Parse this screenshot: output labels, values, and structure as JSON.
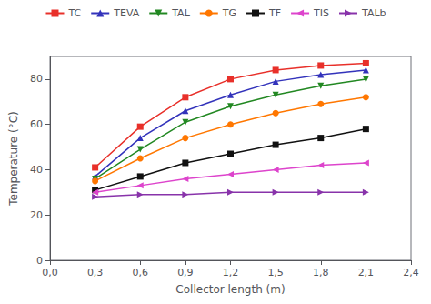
{
  "chart_data": {
    "type": "line",
    "x": [
      0.3,
      0.6,
      0.9,
      1.2,
      1.5,
      1.8,
      2.1
    ],
    "series": [
      {
        "name": "TC",
        "color": "#e8302a",
        "marker": "square",
        "values": [
          41,
          59,
          72,
          80,
          84,
          86,
          87
        ]
      },
      {
        "name": "TEVA",
        "color": "#3333bb",
        "marker": "triangle-up",
        "values": [
          37,
          54,
          66,
          73,
          79,
          82,
          84
        ]
      },
      {
        "name": "TAL",
        "color": "#228822",
        "marker": "triangle-down",
        "values": [
          36,
          49,
          61,
          68,
          73,
          77,
          80
        ]
      },
      {
        "name": "TG",
        "color": "#ff7700",
        "marker": "circle",
        "values": [
          35,
          45,
          54,
          60,
          65,
          69,
          72
        ]
      },
      {
        "name": "TF",
        "color": "#111111",
        "marker": "square",
        "values": [
          31,
          37,
          43,
          47,
          51,
          54,
          58
        ]
      },
      {
        "name": "TIS",
        "color": "#dd44cc",
        "marker": "triangle-left",
        "values": [
          30,
          33,
          36,
          38,
          40,
          42,
          43
        ]
      },
      {
        "name": "TALb",
        "color": "#8833aa",
        "marker": "triangle-right",
        "values": [
          28,
          29,
          29,
          30,
          30,
          30,
          30
        ]
      }
    ],
    "xlabel": "Collector length (m)",
    "ylabel": "Temperature (°C)",
    "xlim": [
      0.0,
      2.4
    ],
    "ylim": [
      0,
      90
    ],
    "xticks": [
      {
        "value": 0.0,
        "label": "0,0"
      },
      {
        "value": 0.3,
        "label": "0,3"
      },
      {
        "value": 0.6,
        "label": "0,6"
      },
      {
        "value": 0.9,
        "label": "0,9"
      },
      {
        "value": 1.2,
        "label": "1,2"
      },
      {
        "value": 1.5,
        "label": "1,5"
      },
      {
        "value": 1.8,
        "label": "1,8"
      },
      {
        "value": 2.1,
        "label": "2,1"
      },
      {
        "value": 2.4,
        "label": "2,4"
      }
    ],
    "yticks": [
      0,
      20,
      40,
      60,
      80
    ],
    "grid": false,
    "legend": "top"
  }
}
